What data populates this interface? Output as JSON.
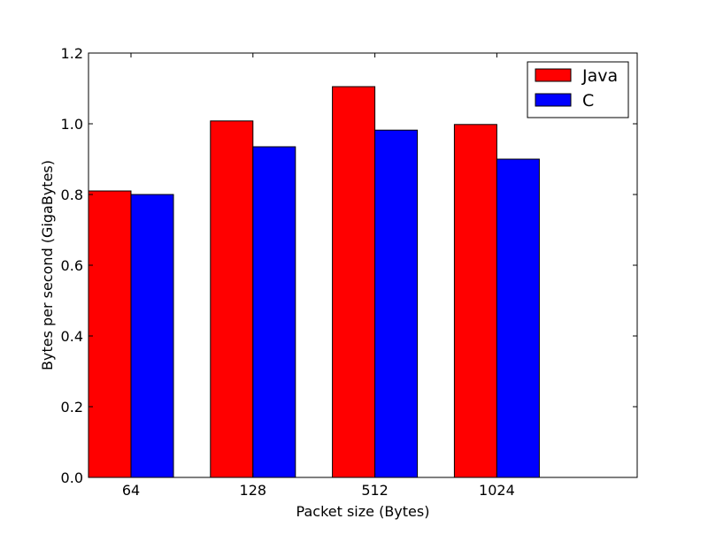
{
  "chart_data": {
    "type": "bar",
    "title": "",
    "xlabel": "Packet size (Bytes)",
    "ylabel": "Bytes per second (GigaBytes)",
    "categories": [
      "64",
      "128",
      "512",
      "1024"
    ],
    "series": [
      {
        "name": "Java",
        "values": [
          0.81,
          1.008,
          1.105,
          0.998
        ],
        "color": "#ff0000"
      },
      {
        "name": "C",
        "values": [
          0.8,
          0.935,
          0.982,
          0.9
        ],
        "color": "#0000ff"
      }
    ],
    "ylim": [
      0,
      1.2
    ],
    "yticks": [
      "0.0",
      "0.2",
      "0.4",
      "0.6",
      "0.8",
      "1.0",
      "1.2"
    ],
    "grid": false,
    "legend_position": "top-right"
  }
}
